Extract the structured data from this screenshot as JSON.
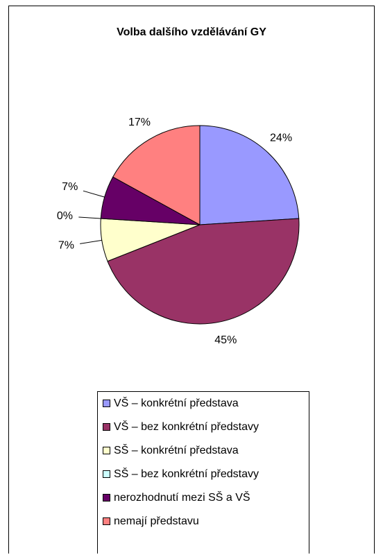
{
  "chart_data": {
    "type": "pie",
    "title": "Volba dalšího vzdělávání GY",
    "categories": [
      "VŠ – konkrétní představa",
      "VŠ – bez konkrétní představy",
      "SŠ – konkrétní představa",
      "SŠ – bez konkrétní představy",
      "nerozhodnutí mezi SŠ a VŠ",
      "nemají představu"
    ],
    "values": [
      24,
      45,
      7,
      0,
      7,
      17
    ],
    "value_labels": [
      "24%",
      "45%",
      "7%",
      "0%",
      "7%",
      "17%"
    ],
    "colors": [
      "#9999ff",
      "#993366",
      "#ffffcc",
      "#ccffff",
      "#660066",
      "#ff8080"
    ],
    "legend": "bottom"
  }
}
